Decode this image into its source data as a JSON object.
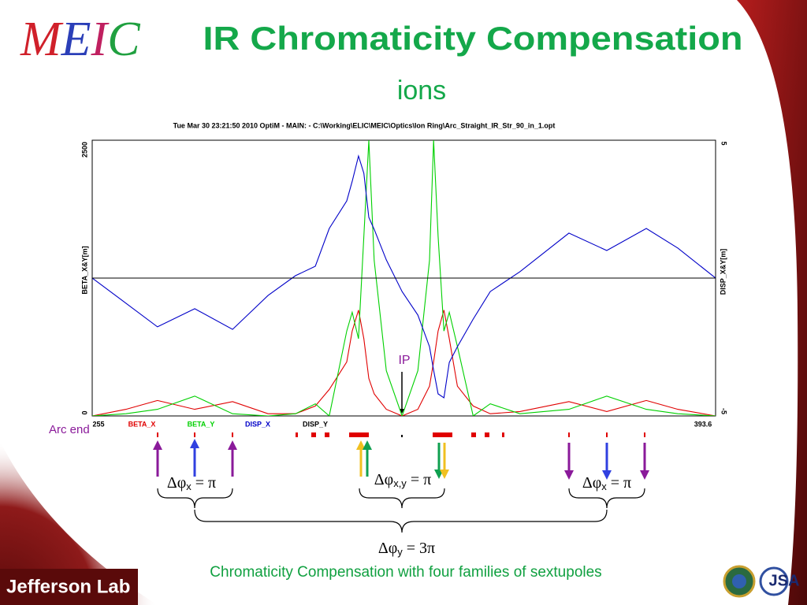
{
  "slide": {
    "logo": [
      "M",
      "E",
      "I",
      "C"
    ],
    "title": "IR Chromaticity Compensation",
    "subtitle": "ions",
    "ip_label": "IP",
    "arc_end": "Arc end",
    "phase_labels": [
      {
        "symbol": "Δφ",
        "sub": "x",
        "eq": " = π"
      },
      {
        "symbol": "Δφ",
        "sub": "x,y",
        "eq": " = π"
      },
      {
        "symbol": "Δφ",
        "sub": "x",
        "eq": " = π"
      },
      {
        "symbol": "Δφ",
        "sub": "y",
        "eq": " = 3π"
      }
    ],
    "caption": "Chromaticity  Compensation with four families of sextupoles",
    "footer_left": "Jefferson Lab",
    "footer_right": "JSA"
  },
  "chart_data": {
    "type": "line",
    "title": "Tue Mar 30 23:21:50 2010    OptiM - MAIN: - C:\\Working\\ELIC\\MEIC\\Optics\\Ion Ring\\Arc_Straight_IR_Str_90_in_1.opt",
    "y_label": "BETA_X&Y[m]",
    "y2_label": "DISP_X&Y[m]",
    "x": [
      255,
      262.5,
      269.5,
      277.8,
      286.2,
      294.1,
      300.2,
      304.6,
      307.7,
      311.6,
      312.8,
      314.2,
      315.4,
      316.5,
      317.7,
      320.4,
      323.9,
      327.4,
      330.0,
      330.9,
      331.9,
      333.2,
      334.4,
      336.2,
      339.7,
      343.5,
      350.1,
      361.0,
      369.4,
      378.2,
      385.2,
      393.6
    ],
    "xlim": [
      255,
      393.6
    ],
    "xticks": [
      255,
      393.6
    ],
    "ylim": [
      0,
      2500
    ],
    "yticks": [
      0,
      2500
    ],
    "y2lim": [
      -5,
      5
    ],
    "y2ticks": [
      -5,
      5
    ],
    "series": [
      {
        "name": "BETA_X",
        "color": "#e00000",
        "values": [
          0,
          60,
          140,
          60,
          130,
          20,
          20,
          90,
          240,
          490,
          770,
          960,
          700,
          340,
          200,
          60,
          0,
          60,
          270,
          490,
          770,
          960,
          700,
          270,
          90,
          20,
          40,
          130,
          40,
          140,
          60,
          0
        ]
      },
      {
        "name": "BETA_Y",
        "color": "#00d000",
        "values": [
          0,
          20,
          60,
          180,
          20,
          0,
          20,
          110,
          0,
          770,
          940,
          700,
          1630,
          2500,
          1410,
          410,
          0,
          410,
          1410,
          2500,
          1630,
          770,
          940,
          630,
          0,
          110,
          20,
          60,
          180,
          60,
          20,
          0
        ]
      },
      {
        "name": "DISP_X",
        "color": "#0000c8",
        "axis": "y2",
        "values": [
          0,
          -0.91,
          -1.77,
          -1.11,
          -1.86,
          -0.63,
          0.09,
          0.43,
          1.8,
          2.8,
          3.51,
          4.43,
          3.8,
          2.2,
          1.77,
          0.66,
          -0.49,
          -1.34,
          -2.49,
          -3.34,
          -4.2,
          -4.34,
          -3.06,
          -2.49,
          -1.49,
          -0.49,
          0.23,
          1.63,
          1.0,
          1.8,
          1.09,
          0
        ]
      },
      {
        "name": "DISP_Y",
        "color": "#000000",
        "axis": "y2",
        "values": [
          0,
          0,
          0,
          0,
          0,
          0,
          0,
          0,
          0,
          0,
          0,
          0,
          0,
          0,
          0,
          0,
          0,
          0,
          0,
          0,
          0,
          0,
          0,
          0,
          0,
          0,
          0,
          0,
          0,
          0,
          0,
          0
        ]
      }
    ]
  }
}
